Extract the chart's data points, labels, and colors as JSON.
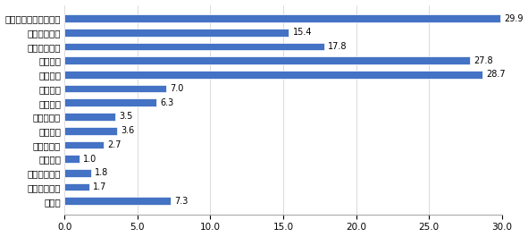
{
  "categories": [
    "その他",
    "国債・地方債",
    "カードローン",
    "外貨預金",
    "住宅ローン",
    "投資信託",
    "家賃支払い",
    "生命保険",
    "年金受取",
    "各種振込",
    "定期預金",
    "公共料金支払",
    "給与受け取り",
    "クレジットカード引落"
  ],
  "values": [
    7.3,
    1.7,
    1.8,
    1.0,
    2.7,
    3.6,
    3.5,
    6.3,
    7.0,
    28.7,
    27.8,
    17.8,
    15.4,
    29.9
  ],
  "bar_color": "#4472C4",
  "xlim": [
    0,
    30.0
  ],
  "xticks": [
    0.0,
    5.0,
    10.0,
    15.0,
    20.0,
    25.0,
    30.0
  ],
  "value_label_fontsize": 7.0,
  "category_fontsize": 7.5,
  "tick_fontsize": 7.5,
  "bar_height": 0.55,
  "background_color": "#ffffff",
  "edge_color": "#ffffff"
}
